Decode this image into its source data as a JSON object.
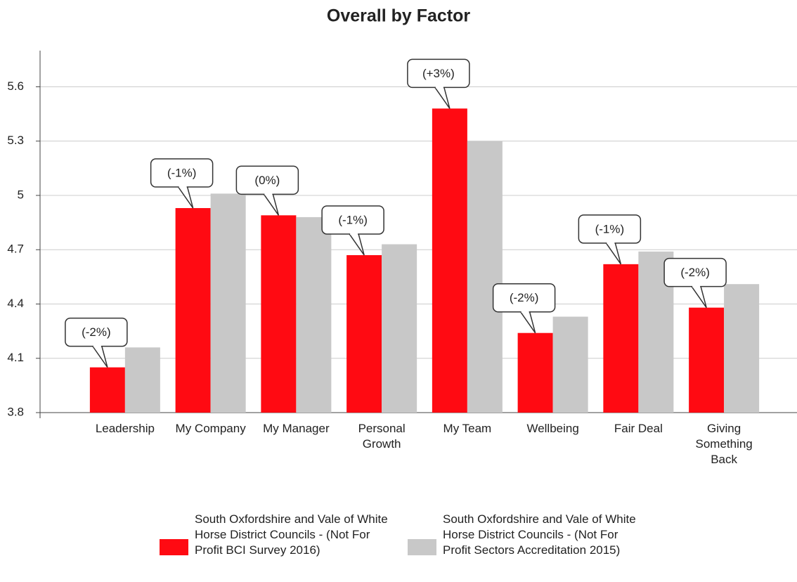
{
  "chart_data": {
    "type": "bar",
    "title": "Overall by Factor",
    "categories": [
      "Leadership",
      "My Company",
      "My Manager",
      "Personal Growth",
      "My Team",
      "Wellbeing",
      "Fair Deal",
      "Giving Something Back"
    ],
    "series": [
      {
        "name": "South Oxfordshire and Vale of White Horse District Councils - (Not For Profit BCI Survey 2016)",
        "color": "#ff0a12",
        "values": [
          4.05,
          4.93,
          4.89,
          4.67,
          5.48,
          4.24,
          4.62,
          4.38
        ]
      },
      {
        "name": "South Oxfordshire and Vale of White Horse District Councils - (Not For Profit Sectors Accreditation 2015)",
        "color": "#c8c8c8",
        "values": [
          4.16,
          5.01,
          4.88,
          4.73,
          5.3,
          4.33,
          4.69,
          4.51
        ]
      }
    ],
    "annotations": [
      "(-2%)",
      "(-1%)",
      "(0%)",
      "(-1%)",
      "(+3%)",
      "(-2%)",
      "(-1%)",
      "(-2%)"
    ],
    "ylim": [
      3.8,
      5.8
    ],
    "yticks": [
      3.8,
      4.1,
      4.4,
      4.7,
      5,
      5.3,
      5.6
    ],
    "grid": true
  }
}
